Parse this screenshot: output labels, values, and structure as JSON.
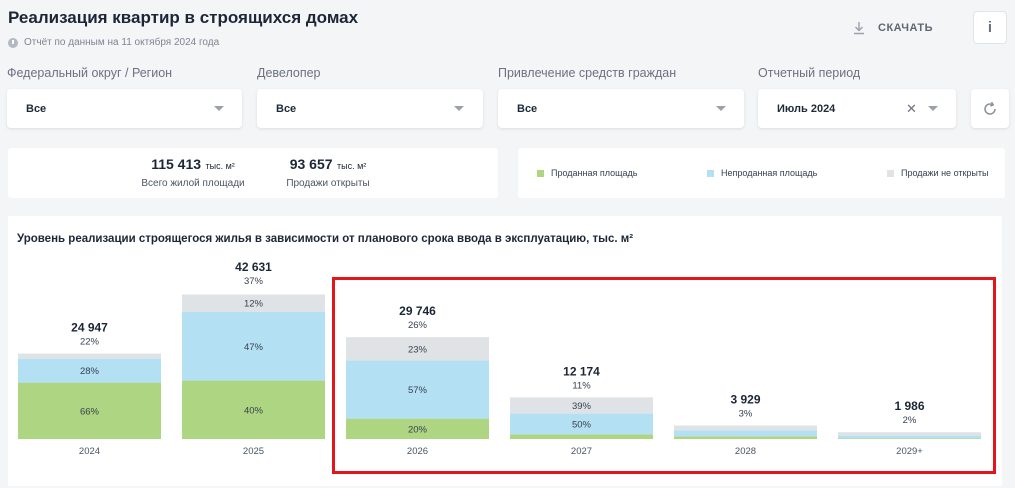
{
  "header": {
    "title": "Реализация квартир в строящихся домах",
    "subtitle": "Отчёт по данным на 11 октября 2024 года",
    "download_label": "СКАЧАТЬ",
    "info_label": "i"
  },
  "filters": [
    {
      "label": "Федеральный округ / Регион",
      "value": "Все"
    },
    {
      "label": "Девелопер",
      "value": "Все"
    },
    {
      "label": "Привлечение средств граждан",
      "value": "Все"
    },
    {
      "label": "Отчетный период",
      "value": "Июль 2024"
    }
  ],
  "stats": {
    "unit": "тыс. м²",
    "total_value": "115 413",
    "total_label": "Всего жилой площади",
    "open_value": "93 657",
    "open_label": "Продажи открыты"
  },
  "legend": {
    "sold": "Проданная площадь",
    "unsold": "Непроданная площадь",
    "not_open": "Продажи не открыты"
  },
  "colors": {
    "sold": "#aed581",
    "unsold": "#b3e0f2",
    "not_open": "#e0e3e6",
    "highlight": "#e3161c"
  },
  "chart_data": {
    "type": "bar",
    "stacked": true,
    "title": "Уровень реализации строящегося жилья в зависимости от планового срока ввода в эксплуатацию, тыс. м²",
    "categories": [
      "2024",
      "2025",
      "2026",
      "2027",
      "2028",
      "2029+"
    ],
    "totals": [
      24947,
      42631,
      29746,
      12174,
      3929,
      1986
    ],
    "total_labels": [
      "24 947",
      "42 631",
      "29 746",
      "12 174",
      "3 929",
      "1 986"
    ],
    "not_open_share_labels": [
      "22%",
      "37%",
      "26%",
      "11%",
      "3%",
      "2%"
    ],
    "series": [
      {
        "name": "Проданная площадь",
        "key": "sold",
        "percent": [
          66,
          40,
          20,
          11,
          20,
          10
        ],
        "labels": [
          "66%",
          "40%",
          "20%",
          "",
          "",
          ""
        ]
      },
      {
        "name": "Непроданная площадь",
        "key": "unsold",
        "percent": [
          28,
          47,
          57,
          50,
          45,
          40
        ],
        "labels": [
          "28%",
          "47%",
          "57%",
          "50%",
          "",
          ""
        ]
      },
      {
        "name": "Продажи не открыты",
        "key": "not_open",
        "percent": [
          6,
          12,
          23,
          39,
          35,
          50
        ],
        "labels": [
          "",
          "12%",
          "23%",
          "39%",
          "",
          ""
        ]
      }
    ]
  }
}
